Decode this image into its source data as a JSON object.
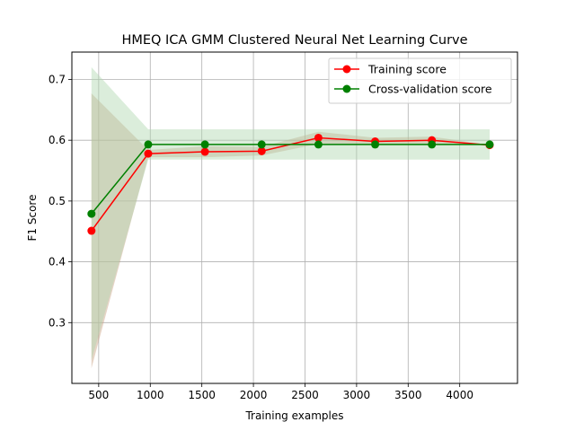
{
  "chart_data": {
    "type": "line",
    "title": "HMEQ ICA GMM Clustered Neural Net Learning Curve",
    "xlabel": "Training examples",
    "ylabel": "F1 Score",
    "xlim": [
      240,
      4560
    ],
    "ylim": [
      0.2,
      0.745
    ],
    "xticks": [
      500,
      1000,
      1500,
      2000,
      2500,
      3000,
      3500,
      4000
    ],
    "yticks": [
      0.3,
      0.4,
      0.5,
      0.6,
      0.7
    ],
    "xtick_labels": [
      "500",
      "1000",
      "1500",
      "2000",
      "2500",
      "3000",
      "3500",
      "4000"
    ],
    "ytick_labels": [
      "0.3",
      "0.4",
      "0.5",
      "0.6",
      "0.7"
    ],
    "grid": true,
    "legend_position": "top-right",
    "x": [
      430,
      980,
      1530,
      2080,
      2630,
      3180,
      3730,
      4290
    ],
    "series": [
      {
        "name": "Training score",
        "color": "#ff0000",
        "band_color": "#c8a080",
        "values": [
          0.451,
          0.578,
          0.581,
          0.582,
          0.604,
          0.598,
          0.6,
          0.592
        ],
        "lower": [
          0.225,
          0.572,
          0.572,
          0.575,
          0.594,
          0.592,
          0.594,
          0.592
        ],
        "upper": [
          0.677,
          0.584,
          0.59,
          0.589,
          0.614,
          0.604,
          0.606,
          0.592
        ]
      },
      {
        "name": "Cross-validation score",
        "color": "#008000",
        "band_color": "#b0d8b0",
        "values": [
          0.479,
          0.593,
          0.593,
          0.593,
          0.593,
          0.593,
          0.593,
          0.593
        ],
        "lower": [
          0.238,
          0.568,
          0.568,
          0.568,
          0.568,
          0.568,
          0.568,
          0.568
        ],
        "upper": [
          0.72,
          0.618,
          0.618,
          0.618,
          0.618,
          0.618,
          0.618,
          0.618
        ]
      }
    ]
  }
}
